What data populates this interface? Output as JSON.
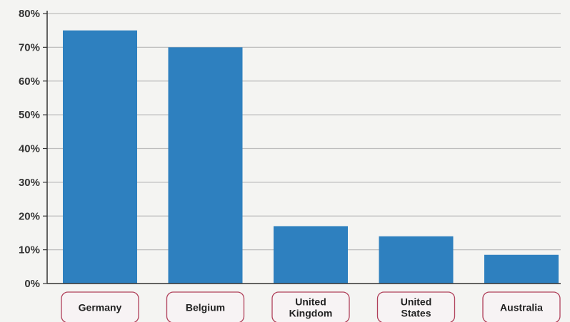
{
  "chart_data": {
    "type": "bar",
    "categories": [
      [
        "Germany"
      ],
      [
        "Belgium"
      ],
      [
        "United",
        "Kingdom"
      ],
      [
        "United",
        "States"
      ],
      [
        "Australia"
      ]
    ],
    "values": [
      75,
      70,
      17,
      14,
      8.5
    ],
    "ylim": [
      0,
      80
    ],
    "yticks": [
      0,
      10,
      20,
      30,
      40,
      50,
      60,
      70,
      80
    ],
    "ytick_labels": [
      "0%",
      "10%",
      "20%",
      "30%",
      "40%",
      "50%",
      "60%",
      "70%",
      "80%"
    ],
    "grid": true,
    "title": "",
    "xlabel": "",
    "ylabel": "",
    "colors": {
      "bar": "#2e80bf",
      "grid": "#bdbdbd",
      "axis": "#333333",
      "label_border": "#b0405a",
      "label_fill": "#f7f3f4"
    }
  }
}
